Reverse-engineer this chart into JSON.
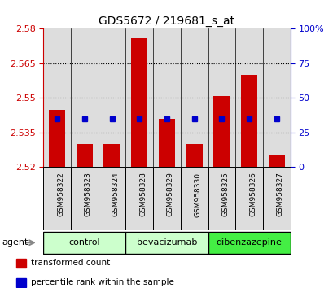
{
  "title": "GDS5672 / 219681_s_at",
  "samples": [
    "GSM958322",
    "GSM958323",
    "GSM958324",
    "GSM958328",
    "GSM958329",
    "GSM958330",
    "GSM958325",
    "GSM958326",
    "GSM958327"
  ],
  "transformed_counts": [
    2.545,
    2.53,
    2.53,
    2.576,
    2.541,
    2.53,
    2.551,
    2.56,
    2.525
  ],
  "percentile_line": 2.541,
  "groups": [
    {
      "label": "control",
      "indices": [
        0,
        1,
        2
      ],
      "color": "#ccffcc"
    },
    {
      "label": "bevacizumab",
      "indices": [
        3,
        4,
        5
      ],
      "color": "#ccffcc"
    },
    {
      "label": "dibenzazepine",
      "indices": [
        6,
        7,
        8
      ],
      "color": "#44ee44"
    }
  ],
  "ylim_left": [
    2.52,
    2.58
  ],
  "ylim_right": [
    0,
    100
  ],
  "yticks_left": [
    2.52,
    2.535,
    2.55,
    2.565,
    2.58
  ],
  "yticks_right": [
    0,
    25,
    50,
    75,
    100
  ],
  "grid_lines": [
    2.535,
    2.55,
    2.565
  ],
  "bar_color": "#cc0000",
  "percentile_color": "#0000cc",
  "bar_bottom": 2.52,
  "legend_items": [
    "transformed count",
    "percentile rank within the sample"
  ],
  "legend_colors": [
    "#cc0000",
    "#0000cc"
  ],
  "col_bg_color": "#dddddd",
  "plot_bg_color": "#ffffff"
}
